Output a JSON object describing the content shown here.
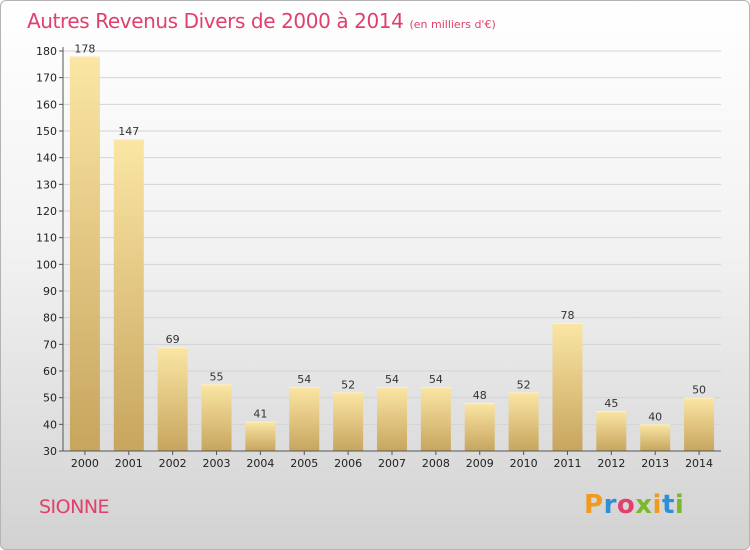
{
  "header": {
    "title": "Autres Revenus Divers de 2000 à 2014",
    "unit": "(en milliers d'€)"
  },
  "location": "SIONNE",
  "brand": {
    "name": "Proxiti",
    "letters": [
      {
        "char": "P",
        "color": "#f29a1e"
      },
      {
        "char": "r",
        "color": "#2e8fd6"
      },
      {
        "char": "o",
        "color": "#e0406a"
      },
      {
        "char": "x",
        "color": "#7ab929"
      },
      {
        "char": "i",
        "color": "#f29a1e"
      },
      {
        "char": "t",
        "color": "#2e8fd6"
      },
      {
        "char": "i",
        "color": "#7ab929"
      }
    ]
  },
  "colors": {
    "title": "#e0406a",
    "bar_top": "#fbe6a4",
    "bar_bottom": "#c7a55e",
    "bar_highlight": "#fff1c4",
    "grid": "#d4d4d4",
    "axis": "#555555"
  },
  "chart_data": {
    "type": "bar",
    "title": "Autres Revenus Divers de 2000 à 2014",
    "subtitle": "(en milliers d'€)",
    "categories": [
      "2000",
      "2001",
      "2002",
      "2003",
      "2004",
      "2005",
      "2006",
      "2007",
      "2008",
      "2009",
      "2010",
      "2011",
      "2012",
      "2013",
      "2014"
    ],
    "values": [
      178,
      147,
      69,
      55,
      41,
      54,
      52,
      54,
      54,
      48,
      52,
      78,
      45,
      40,
      50
    ],
    "ylim": [
      30,
      180
    ],
    "yticks": [
      30,
      40,
      50,
      60,
      70,
      80,
      90,
      100,
      110,
      120,
      130,
      140,
      150,
      160,
      170,
      180
    ],
    "grid": true,
    "legend": "none"
  }
}
